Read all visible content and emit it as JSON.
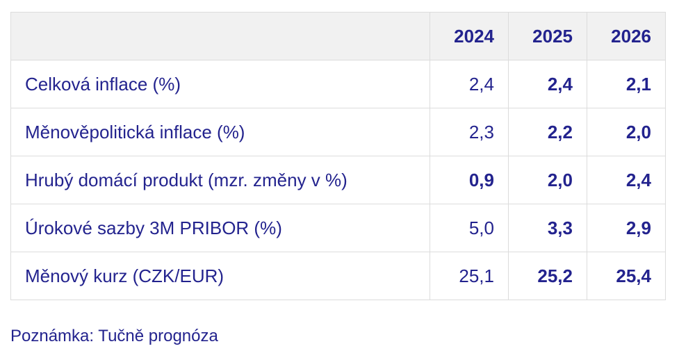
{
  "table": {
    "header": [
      "2024",
      "2025",
      "2026"
    ],
    "rows": [
      {
        "label": "Celková inflace (%)",
        "cells": [
          {
            "text": "2,4",
            "bold": false
          },
          {
            "text": "2,4",
            "bold": true
          },
          {
            "text": "2,1",
            "bold": true
          }
        ]
      },
      {
        "label": "Měnověpolitická inflace (%)",
        "cells": [
          {
            "text": "2,3",
            "bold": false
          },
          {
            "text": "2,2",
            "bold": true
          },
          {
            "text": "2,0",
            "bold": true
          }
        ]
      },
      {
        "label": "Hrubý domácí produkt (mzr. změny v %)",
        "cells": [
          {
            "text": "0,9",
            "bold": true
          },
          {
            "text": "2,0",
            "bold": true
          },
          {
            "text": "2,4",
            "bold": true
          }
        ]
      },
      {
        "label": "Úrokové sazby 3M PRIBOR (%)",
        "cells": [
          {
            "text": "5,0",
            "bold": false
          },
          {
            "text": "3,3",
            "bold": true
          },
          {
            "text": "2,9",
            "bold": true
          }
        ]
      },
      {
        "label": "Měnový kurz (CZK/EUR)",
        "cells": [
          {
            "text": "25,1",
            "bold": false
          },
          {
            "text": "25,2",
            "bold": true
          },
          {
            "text": "25,4",
            "bold": true
          }
        ]
      }
    ]
  },
  "note": "Poznámka: Tučně prognóza"
}
